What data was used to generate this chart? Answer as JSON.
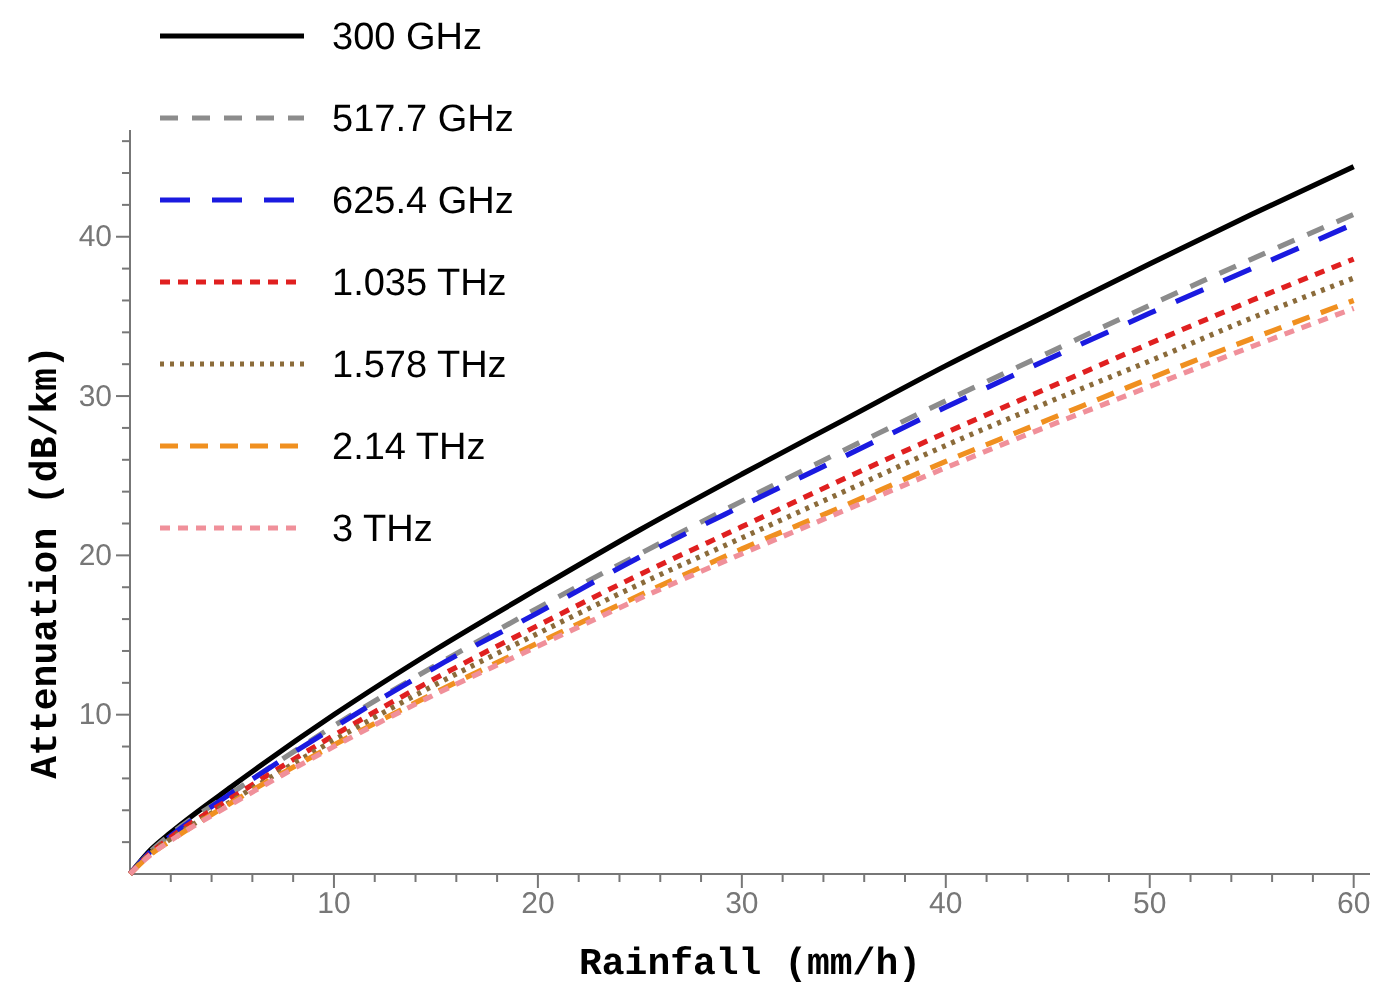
{
  "chart_data": {
    "type": "line",
    "xlabel": "Rainfall (mm/h)",
    "ylabel": "Attenuation (dB/km)",
    "x": [
      0,
      1,
      2,
      5,
      10,
      15,
      20,
      25,
      30,
      35,
      40,
      45,
      50,
      55,
      60
    ],
    "xlim": [
      0,
      60.8
    ],
    "ylim": [
      0,
      46.7
    ],
    "xticks": [
      {
        "value": 2,
        "label": null
      },
      {
        "value": 4,
        "label": null
      },
      {
        "value": 6,
        "label": null
      },
      {
        "value": 8,
        "label": null
      },
      10,
      {
        "value": 12,
        "label": null
      },
      {
        "value": 14,
        "label": null
      },
      {
        "value": 16,
        "label": null
      },
      {
        "value": 18,
        "label": null
      },
      20,
      {
        "value": 22,
        "label": null
      },
      {
        "value": 24,
        "label": null
      },
      {
        "value": 26,
        "label": null
      },
      {
        "value": 28,
        "label": null
      },
      30,
      {
        "value": 32,
        "label": null
      },
      {
        "value": 34,
        "label": null
      },
      {
        "value": 36,
        "label": null
      },
      {
        "value": 38,
        "label": null
      },
      40,
      {
        "value": 42,
        "label": null
      },
      {
        "value": 44,
        "label": null
      },
      {
        "value": 46,
        "label": null
      },
      {
        "value": 48,
        "label": null
      },
      50,
      {
        "value": 52,
        "label": null
      },
      {
        "value": 54,
        "label": null
      },
      {
        "value": 56,
        "label": null
      },
      {
        "value": 58,
        "label": null
      },
      60
    ],
    "yticks": [
      {
        "value": 2,
        "label": null
      },
      {
        "value": 4,
        "label": null
      },
      {
        "value": 6,
        "label": null
      },
      {
        "value": 8,
        "label": null
      },
      10,
      {
        "value": 12,
        "label": null
      },
      {
        "value": 14,
        "label": null
      },
      {
        "value": 16,
        "label": null
      },
      {
        "value": 18,
        "label": null
      },
      20,
      {
        "value": 22,
        "label": null
      },
      {
        "value": 24,
        "label": null
      },
      {
        "value": 26,
        "label": null
      },
      {
        "value": 28,
        "label": null
      },
      30,
      {
        "value": 32,
        "label": null
      },
      {
        "value": 34,
        "label": null
      },
      {
        "value": 36,
        "label": null
      },
      {
        "value": 38,
        "label": null
      },
      40,
      {
        "value": 42,
        "label": null
      },
      {
        "value": 44,
        "label": null
      },
      {
        "value": 46,
        "label": null
      }
    ],
    "legend": "top left",
    "grid": false,
    "series": [
      {
        "name": "300 GHz",
        "color": "#000000",
        "line_style": "solid",
        "values": [
          0,
          1.5,
          2.6,
          5.5,
          10.0,
          14.1,
          17.9,
          21.6,
          25.1,
          28.5,
          31.9,
          35.1,
          38.3,
          41.4,
          44.4
        ]
      },
      {
        "name": "517.7 GHz",
        "color": "#8c8c8c",
        "line_style": "dashed",
        "values": [
          0,
          1.4,
          2.5,
          5.1,
          9.3,
          13.1,
          16.7,
          20.1,
          23.4,
          26.6,
          29.7,
          32.7,
          35.7,
          38.6,
          41.4
        ]
      },
      {
        "name": "625.4 GHz",
        "color": "#1a1ae0",
        "line_style": "dashed",
        "values": [
          0,
          1.4,
          2.4,
          5.1,
          9.2,
          13.0,
          16.4,
          19.9,
          23.1,
          26.2,
          29.3,
          32.3,
          35.2,
          38.0,
          40.8
        ]
      },
      {
        "name": "1.035 THz",
        "color": "#e02020",
        "line_style": "dashed",
        "values": [
          0,
          1.3,
          2.3,
          4.8,
          8.7,
          12.3,
          15.6,
          18.8,
          21.8,
          24.8,
          27.7,
          30.5,
          33.3,
          36.0,
          38.6
        ]
      },
      {
        "name": "1.578 THz",
        "color": "#8b6b3a",
        "line_style": "dotted",
        "values": [
          0,
          1.3,
          2.2,
          4.6,
          8.4,
          11.9,
          15.1,
          18.2,
          21.1,
          24.0,
          26.9,
          29.6,
          32.2,
          34.9,
          37.4
        ]
      },
      {
        "name": "2.14 THz",
        "color": "#f09020",
        "line_style": "dashed",
        "values": [
          0,
          1.2,
          2.1,
          4.5,
          8.1,
          11.4,
          14.5,
          17.5,
          20.4,
          23.1,
          25.9,
          28.5,
          31.1,
          33.6,
          36.0
        ]
      },
      {
        "name": "3 THz",
        "color": "#f0909a",
        "line_style": "dashed",
        "values": [
          0,
          1.2,
          2.1,
          4.4,
          8.0,
          11.3,
          14.3,
          17.3,
          20.1,
          22.8,
          25.5,
          28.1,
          30.6,
          33.1,
          35.5
        ]
      }
    ]
  }
}
